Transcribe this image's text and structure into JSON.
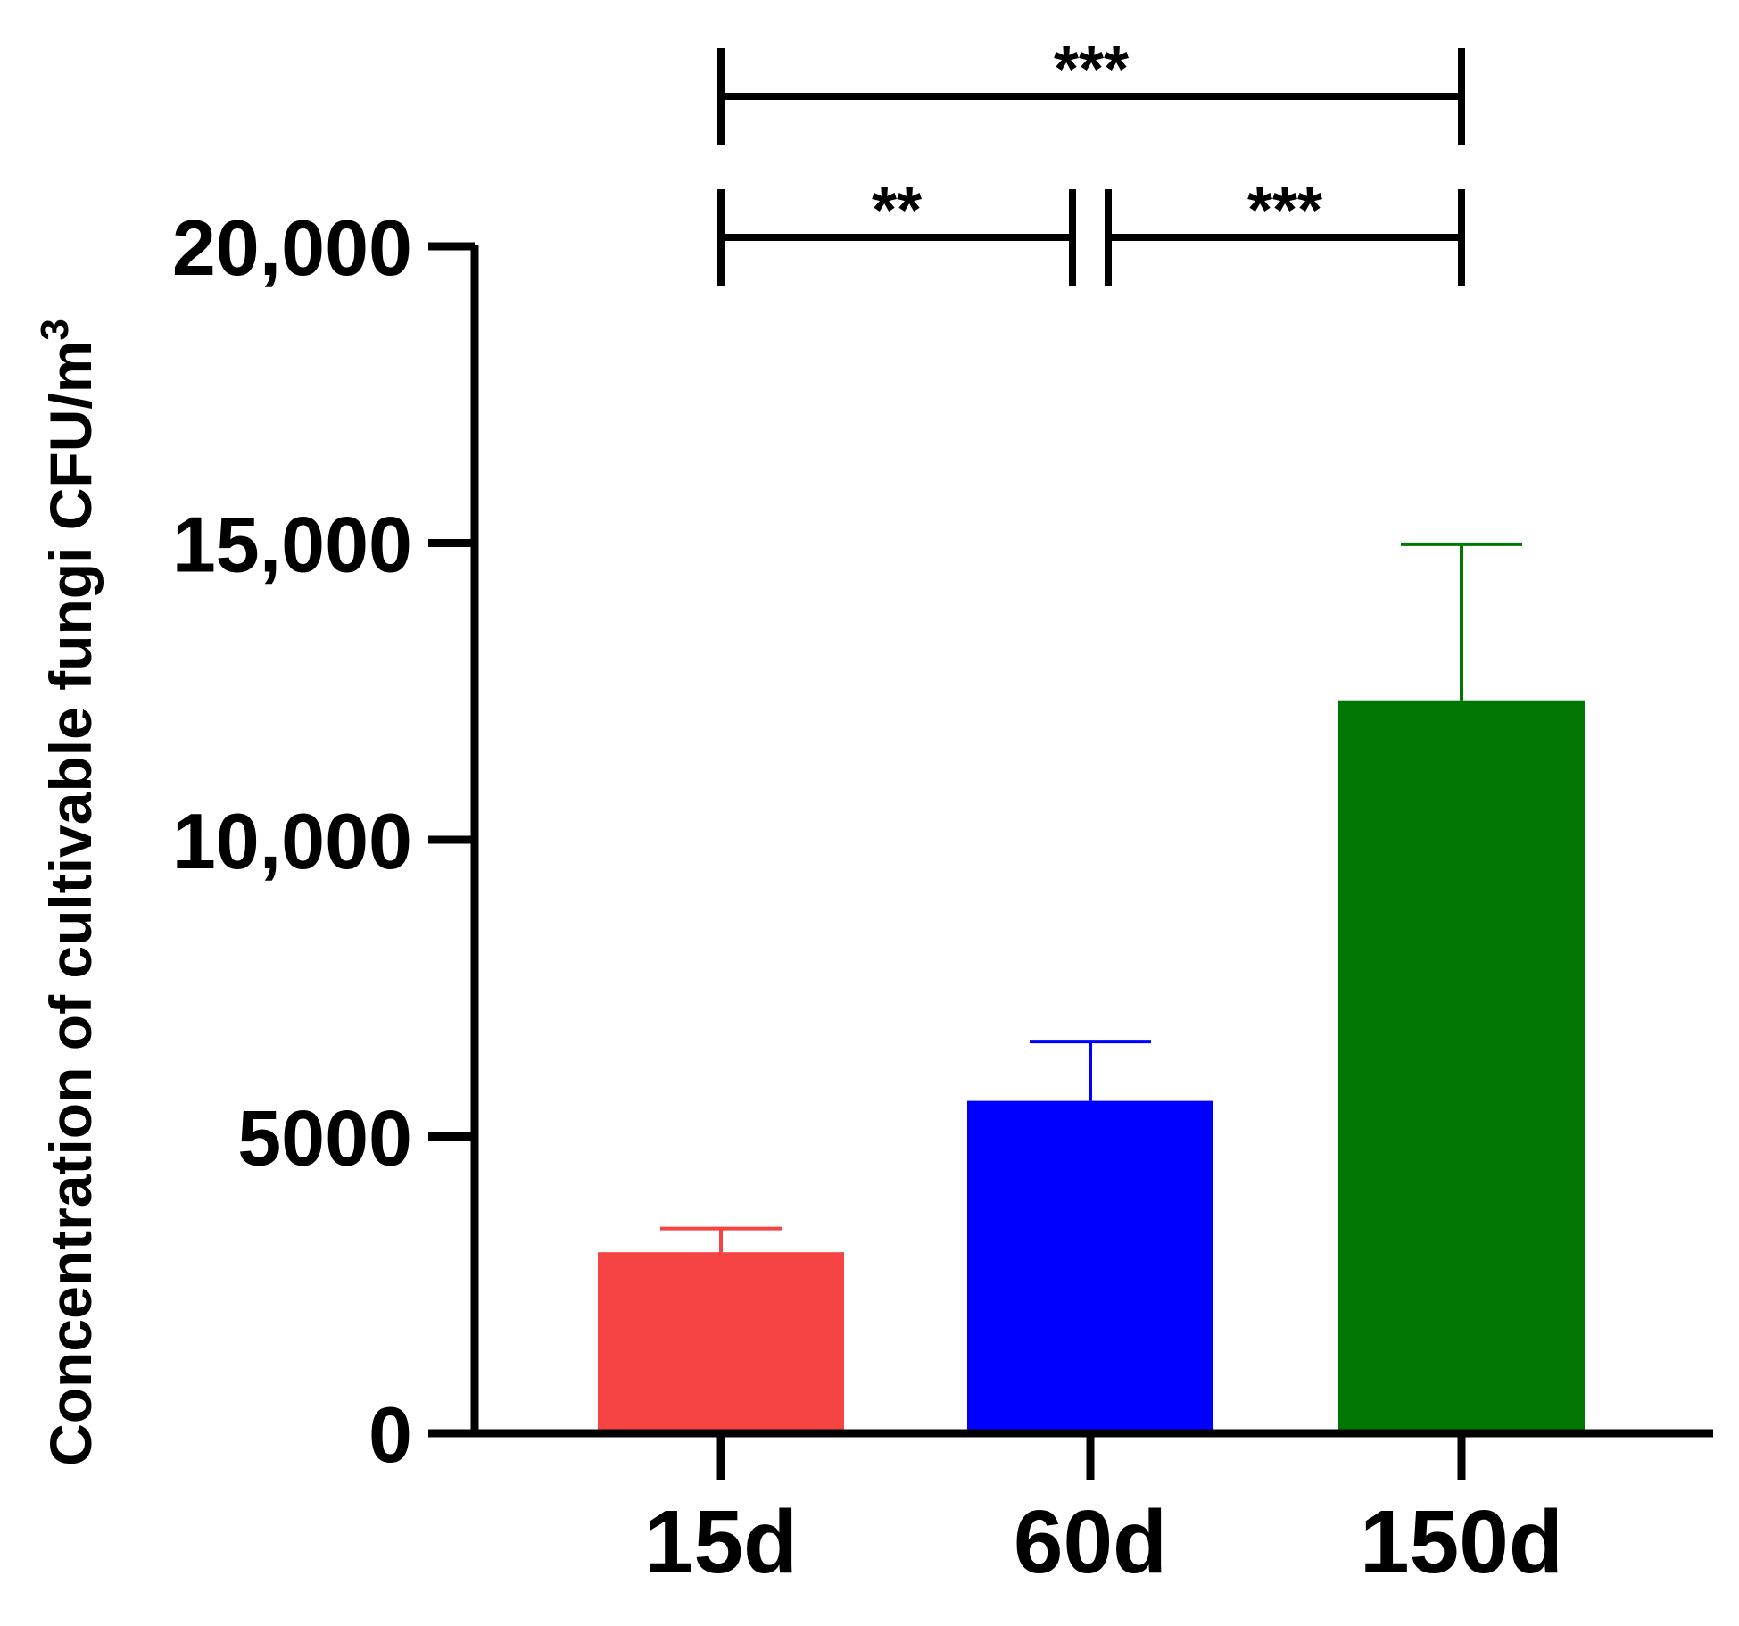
{
  "chart_data": {
    "type": "bar",
    "ylabel": "Concentration of cultivable fungi CFU/m",
    "ylabel_superscript": "3",
    "categories": [
      "15d",
      "60d",
      "150d"
    ],
    "values": [
      3050,
      5600,
      12350
    ],
    "error_upper": [
      3450,
      6600,
      14980
    ],
    "colors": [
      "#f64343",
      "#0000ff",
      "#007700"
    ],
    "ylim": [
      0,
      20000
    ],
    "yticks": [
      {
        "value": 0,
        "label": "0"
      },
      {
        "value": 5000,
        "label": "5000"
      },
      {
        "value": 10000,
        "label": "10,000"
      },
      {
        "value": 15000,
        "label": "15,000"
      },
      {
        "value": 20000,
        "label": "20,000"
      }
    ],
    "significance": [
      {
        "from": 0,
        "to": 1,
        "label": "**",
        "level": 1
      },
      {
        "from": 1,
        "to": 2,
        "label": "***",
        "level": 1
      },
      {
        "from": 0,
        "to": 2,
        "label": "***",
        "level": 2
      }
    ],
    "grid": false,
    "legend": "none"
  }
}
